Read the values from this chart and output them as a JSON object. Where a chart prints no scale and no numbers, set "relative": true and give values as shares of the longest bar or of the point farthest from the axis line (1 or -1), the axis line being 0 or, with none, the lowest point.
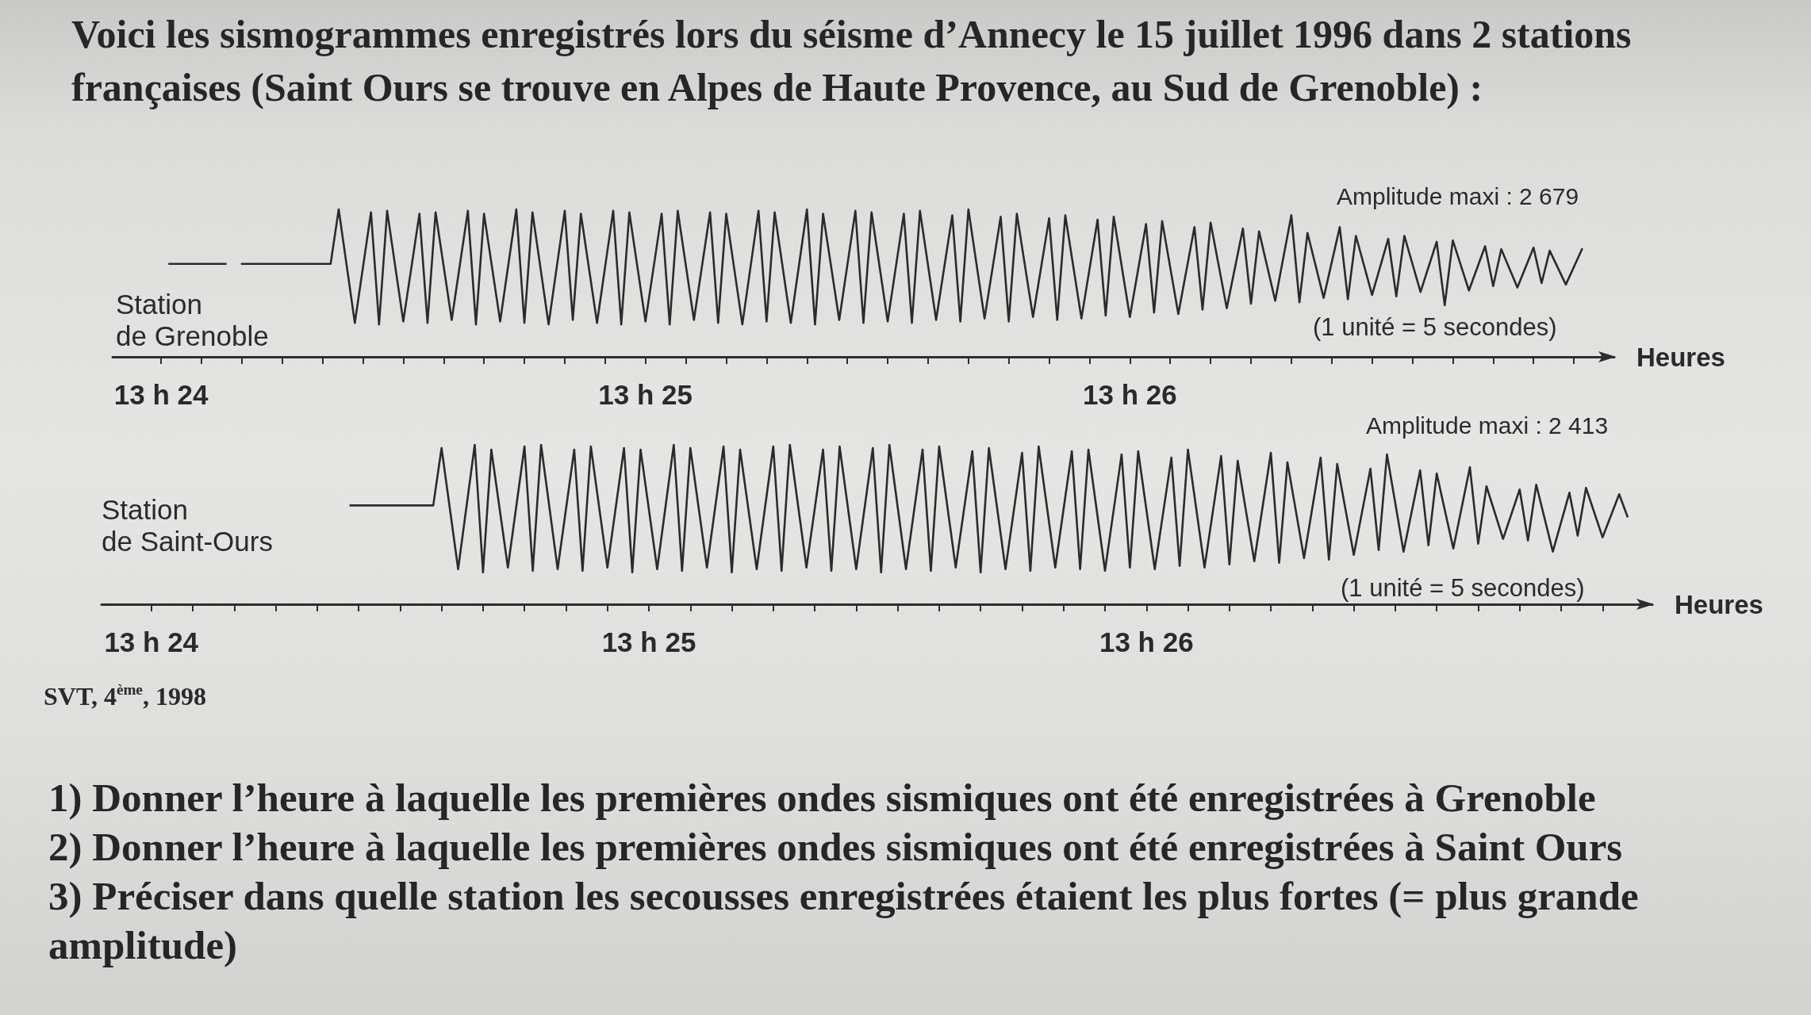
{
  "chart_data": [
    {
      "type": "line",
      "relative": true,
      "title": "Voici les sismogrammes enregistrés lors du séisme d’Annecy le 15 juillet 1996 dans 2 stations françaises (Saint Ours se trouve en Alpes de Haute Provence, au Sud de Grenoble) :",
      "xlabel": "Heures",
      "annotations": [
        "Amplitude maxi : 2 679",
        "(1 unité = 5 secondes)"
      ],
      "xlim": [
        "1996-07-15T13:23:54",
        "1996-07-15T13:27:00"
      ],
      "xticks": [
        {
          "value": "1996-07-15T13:24:00",
          "label": "13 h 24"
        },
        {
          "value": "1996-07-15T13:24:05",
          "label": null
        },
        {
          "value": "1996-07-15T13:24:10",
          "label": null
        },
        {
          "value": "1996-07-15T13:24:15",
          "label": null
        },
        {
          "value": "1996-07-15T13:24:20",
          "label": null
        },
        {
          "value": "1996-07-15T13:24:25",
          "label": null
        },
        {
          "value": "1996-07-15T13:24:30",
          "label": null
        },
        {
          "value": "1996-07-15T13:24:35",
          "label": null
        },
        {
          "value": "1996-07-15T13:24:40",
          "label": null
        },
        {
          "value": "1996-07-15T13:24:45",
          "label": null
        },
        {
          "value": "1996-07-15T13:24:50",
          "label": null
        },
        {
          "value": "1996-07-15T13:24:55",
          "label": null
        },
        {
          "value": "1996-07-15T13:25:00",
          "label": "13 h 25"
        },
        {
          "value": "1996-07-15T13:25:05",
          "label": null
        },
        {
          "value": "1996-07-15T13:25:10",
          "label": null
        },
        {
          "value": "1996-07-15T13:25:15",
          "label": null
        },
        {
          "value": "1996-07-15T13:25:20",
          "label": null
        },
        {
          "value": "1996-07-15T13:25:25",
          "label": null
        },
        {
          "value": "1996-07-15T13:25:30",
          "label": null
        },
        {
          "value": "1996-07-15T13:25:35",
          "label": null
        },
        {
          "value": "1996-07-15T13:25:40",
          "label": null
        },
        {
          "value": "1996-07-15T13:25:45",
          "label": null
        },
        {
          "value": "1996-07-15T13:25:50",
          "label": null
        },
        {
          "value": "1996-07-15T13:25:55",
          "label": null
        },
        {
          "value": "1996-07-15T13:26:00",
          "label": "13 h 26"
        },
        {
          "value": "1996-07-15T13:26:05",
          "label": null
        },
        {
          "value": "1996-07-15T13:26:10",
          "label": null
        },
        {
          "value": "1996-07-15T13:26:15",
          "label": null
        },
        {
          "value": "1996-07-15T13:26:20",
          "label": null
        },
        {
          "value": "1996-07-15T13:26:25",
          "label": null
        },
        {
          "value": "1996-07-15T13:26:30",
          "label": null
        },
        {
          "value": "1996-07-15T13:26:35",
          "label": null
        },
        {
          "value": "1996-07-15T13:26:40",
          "label": null
        },
        {
          "value": "1996-07-15T13:26:45",
          "label": null
        },
        {
          "value": "1996-07-15T13:26:50",
          "label": null
        },
        {
          "value": "1996-07-15T13:26:55",
          "label": null
        }
      ],
      "x": [
        "1996-07-15T13:24:01",
        "1996-07-15T13:24:08",
        "1996-07-15T13:24:09",
        "1996-07-15T13:24:10",
        "1996-07-15T13:24:21",
        "1996-07-15T13:24:22",
        "1996-07-15T13:24:24",
        "1996-07-15T13:24:26",
        "1996-07-15T13:24:27",
        "1996-07-15T13:24:28",
        "1996-07-15T13:24:30",
        "1996-07-15T13:24:32",
        "1996-07-15T13:24:33",
        "1996-07-15T13:24:34",
        "1996-07-15T13:24:36",
        "1996-07-15T13:24:38",
        "1996-07-15T13:24:39",
        "1996-07-15T13:24:40",
        "1996-07-15T13:24:42",
        "1996-07-15T13:24:44",
        "1996-07-15T13:24:45",
        "1996-07-15T13:24:46",
        "1996-07-15T13:24:48",
        "1996-07-15T13:24:50",
        "1996-07-15T13:24:51",
        "1996-07-15T13:24:52",
        "1996-07-15T13:24:54",
        "1996-07-15T13:24:56",
        "1996-07-15T13:24:57",
        "1996-07-15T13:24:58",
        "1996-07-15T13:25:00",
        "1996-07-15T13:25:02",
        "1996-07-15T13:25:03",
        "1996-07-15T13:25:04",
        "1996-07-15T13:25:06",
        "1996-07-15T13:25:08",
        "1996-07-15T13:25:09",
        "1996-07-15T13:25:10",
        "1996-07-15T13:25:12",
        "1996-07-15T13:25:14",
        "1996-07-15T13:25:15",
        "1996-07-15T13:25:16",
        "1996-07-15T13:25:18",
        "1996-07-15T13:25:20",
        "1996-07-15T13:25:21",
        "1996-07-15T13:25:22",
        "1996-07-15T13:25:24",
        "1996-07-15T13:25:26",
        "1996-07-15T13:25:27",
        "1996-07-15T13:25:28",
        "1996-07-15T13:25:30",
        "1996-07-15T13:25:32",
        "1996-07-15T13:25:33",
        "1996-07-15T13:25:34",
        "1996-07-15T13:25:36",
        "1996-07-15T13:25:38",
        "1996-07-15T13:25:39",
        "1996-07-15T13:25:40",
        "1996-07-15T13:25:42",
        "1996-07-15T13:25:44",
        "1996-07-15T13:25:45",
        "1996-07-15T13:25:46",
        "1996-07-15T13:25:48",
        "1996-07-15T13:25:50",
        "1996-07-15T13:25:51",
        "1996-07-15T13:25:52",
        "1996-07-15T13:25:54",
        "1996-07-15T13:25:56",
        "1996-07-15T13:25:57",
        "1996-07-15T13:25:58",
        "1996-07-15T13:26:00",
        "1996-07-15T13:26:02",
        "1996-07-15T13:26:03",
        "1996-07-15T13:26:04",
        "1996-07-15T13:26:06",
        "1996-07-15T13:26:08",
        "1996-07-15T13:26:09",
        "1996-07-15T13:26:10",
        "1996-07-15T13:26:12",
        "1996-07-15T13:26:14",
        "1996-07-15T13:26:15",
        "1996-07-15T13:26:16",
        "1996-07-15T13:26:18",
        "1996-07-15T13:26:20",
        "1996-07-15T13:26:21",
        "1996-07-15T13:26:22",
        "1996-07-15T13:26:24",
        "1996-07-15T13:26:26",
        "1996-07-15T13:26:27",
        "1996-07-15T13:26:28",
        "1996-07-15T13:26:30",
        "1996-07-15T13:26:32",
        "1996-07-15T13:26:33",
        "1996-07-15T13:26:34",
        "1996-07-15T13:26:36",
        "1996-07-15T13:26:38",
        "1996-07-15T13:26:39",
        "1996-07-15T13:26:40",
        "1996-07-15T13:26:42",
        "1996-07-15T13:26:44",
        "1996-07-15T13:26:45",
        "1996-07-15T13:26:46",
        "1996-07-15T13:26:48",
        "1996-07-15T13:26:50",
        "1996-07-15T13:26:51",
        "1996-07-15T13:26:52",
        "1996-07-15T13:26:54",
        "1996-07-15T13:26:56"
      ],
      "series": [
        {
          "name": "Station de Grenoble",
          "color": "#2b2b2b",
          "values": [
            0.63,
            0.63,
            null,
            0.63,
            0.63,
            1.0,
            0.23,
            0.98,
            0.22,
            0.99,
            0.24,
            0.97,
            0.23,
            0.98,
            0.25,
            0.99,
            0.22,
            0.97,
            0.24,
            1.0,
            0.23,
            0.98,
            0.22,
            0.99,
            0.25,
            0.97,
            0.23,
            0.99,
            0.22,
            0.98,
            0.24,
            0.97,
            0.22,
            0.99,
            0.25,
            0.98,
            0.23,
            0.97,
            0.22,
            0.99,
            0.24,
            0.98,
            0.23,
            1.0,
            0.22,
            0.97,
            0.25,
            0.99,
            0.23,
            0.98,
            0.24,
            0.97,
            0.23,
            0.99,
            0.25,
            0.96,
            0.24,
            1.0,
            0.26,
            0.95,
            0.24,
            0.97,
            0.27,
            0.94,
            0.25,
            0.96,
            0.26,
            0.93,
            0.28,
            0.95,
            0.27,
            0.9,
            0.3,
            0.92,
            0.29,
            0.88,
            0.32,
            0.91,
            0.33,
            0.87,
            0.36,
            0.85,
            0.38,
            0.96,
            0.37,
            0.84,
            0.4,
            0.88,
            0.39,
            0.82,
            0.42,
            0.8,
            0.41,
            0.82,
            0.44,
            0.78,
            0.35,
            0.79,
            0.45,
            0.75,
            0.48,
            0.73,
            0.47,
            0.74,
            0.5,
            0.72,
            0.49,
            0.73
          ]
        }
      ]
    },
    {
      "type": "line",
      "relative": true,
      "xlabel": "Heures",
      "annotations": [
        "Amplitude maxi : 2 413",
        "(1 unité = 5 secondes)",
        "SVT, 4$^{ème}$, 1998",
        "1) Donner l’heure à laquelle les premières ondes sismiques ont été enregistrées à Grenoble",
        "2) Donner l’heure à laquelle les premières ondes sismiques ont été enregistrées à Saint Ours",
        "3) Préciser dans quelle station les secousses enregistrées étaient les plus fortes (= plus grande amplitude)"
      ],
      "xlim": [
        "1996-07-15T13:23:54",
        "1996-07-15T13:27:01"
      ],
      "xticks": [
        {
          "value": "1996-07-15T13:24:00",
          "label": "13 h 24"
        },
        {
          "value": "1996-07-15T13:24:05",
          "label": null
        },
        {
          "value": "1996-07-15T13:24:10",
          "label": null
        },
        {
          "value": "1996-07-15T13:24:15",
          "label": null
        },
        {
          "value": "1996-07-15T13:24:20",
          "label": null
        },
        {
          "value": "1996-07-15T13:24:25",
          "label": null
        },
        {
          "value": "1996-07-15T13:24:30",
          "label": null
        },
        {
          "value": "1996-07-15T13:24:35",
          "label": null
        },
        {
          "value": "1996-07-15T13:24:40",
          "label": null
        },
        {
          "value": "1996-07-15T13:24:45",
          "label": null
        },
        {
          "value": "1996-07-15T13:24:50",
          "label": null
        },
        {
          "value": "1996-07-15T13:24:55",
          "label": null
        },
        {
          "value": "1996-07-15T13:25:00",
          "label": "13 h 25"
        },
        {
          "value": "1996-07-15T13:25:05",
          "label": null
        },
        {
          "value": "1996-07-15T13:25:10",
          "label": null
        },
        {
          "value": "1996-07-15T13:25:15",
          "label": null
        },
        {
          "value": "1996-07-15T13:25:20",
          "label": null
        },
        {
          "value": "1996-07-15T13:25:25",
          "label": null
        },
        {
          "value": "1996-07-15T13:25:30",
          "label": null
        },
        {
          "value": "1996-07-15T13:25:35",
          "label": null
        },
        {
          "value": "1996-07-15T13:25:40",
          "label": null
        },
        {
          "value": "1996-07-15T13:25:45",
          "label": null
        },
        {
          "value": "1996-07-15T13:25:50",
          "label": null
        },
        {
          "value": "1996-07-15T13:25:55",
          "label": null
        },
        {
          "value": "1996-07-15T13:26:00",
          "label": "13 h 26"
        },
        {
          "value": "1996-07-15T13:26:05",
          "label": null
        },
        {
          "value": "1996-07-15T13:26:10",
          "label": null
        },
        {
          "value": "1996-07-15T13:26:15",
          "label": null
        },
        {
          "value": "1996-07-15T13:26:20",
          "label": null
        },
        {
          "value": "1996-07-15T13:26:25",
          "label": null
        },
        {
          "value": "1996-07-15T13:26:30",
          "label": null
        },
        {
          "value": "1996-07-15T13:26:35",
          "label": null
        },
        {
          "value": "1996-07-15T13:26:40",
          "label": null
        },
        {
          "value": "1996-07-15T13:26:45",
          "label": null
        },
        {
          "value": "1996-07-15T13:26:50",
          "label": null
        },
        {
          "value": "1996-07-15T13:26:55",
          "label": null
        }
      ],
      "x": [
        "1996-07-15T13:24:24",
        "1996-07-15T13:24:34",
        "1996-07-15T13:24:35",
        "1996-07-15T13:24:37",
        "1996-07-15T13:24:39",
        "1996-07-15T13:24:40",
        "1996-07-15T13:24:41",
        "1996-07-15T13:24:43",
        "1996-07-15T13:24:45",
        "1996-07-15T13:24:46",
        "1996-07-15T13:24:47",
        "1996-07-15T13:24:49",
        "1996-07-15T13:24:51",
        "1996-07-15T13:24:52",
        "1996-07-15T13:24:53",
        "1996-07-15T13:24:55",
        "1996-07-15T13:24:57",
        "1996-07-15T13:24:58",
        "1996-07-15T13:24:59",
        "1996-07-15T13:25:01",
        "1996-07-15T13:25:03",
        "1996-07-15T13:25:04",
        "1996-07-15T13:25:05",
        "1996-07-15T13:25:07",
        "1996-07-15T13:25:09",
        "1996-07-15T13:25:10",
        "1996-07-15T13:25:11",
        "1996-07-15T13:25:13",
        "1996-07-15T13:25:15",
        "1996-07-15T13:25:16",
        "1996-07-15T13:25:17",
        "1996-07-15T13:25:19",
        "1996-07-15T13:25:21",
        "1996-07-15T13:25:22",
        "1996-07-15T13:25:23",
        "1996-07-15T13:25:25",
        "1996-07-15T13:25:27",
        "1996-07-15T13:25:28",
        "1996-07-15T13:25:29",
        "1996-07-15T13:25:31",
        "1996-07-15T13:25:33",
        "1996-07-15T13:25:34",
        "1996-07-15T13:25:35",
        "1996-07-15T13:25:37",
        "1996-07-15T13:25:39",
        "1996-07-15T13:25:40",
        "1996-07-15T13:25:41",
        "1996-07-15T13:25:43",
        "1996-07-15T13:25:45",
        "1996-07-15T13:25:46",
        "1996-07-15T13:25:47",
        "1996-07-15T13:25:49",
        "1996-07-15T13:25:51",
        "1996-07-15T13:25:52",
        "1996-07-15T13:25:53",
        "1996-07-15T13:25:55",
        "1996-07-15T13:25:57",
        "1996-07-15T13:25:58",
        "1996-07-15T13:25:59",
        "1996-07-15T13:26:01",
        "1996-07-15T13:26:03",
        "1996-07-15T13:26:04",
        "1996-07-15T13:26:05",
        "1996-07-15T13:26:07",
        "1996-07-15T13:26:09",
        "1996-07-15T13:26:10",
        "1996-07-15T13:26:11",
        "1996-07-15T13:26:13",
        "1996-07-15T13:26:15",
        "1996-07-15T13:26:16",
        "1996-07-15T13:26:17",
        "1996-07-15T13:26:19",
        "1996-07-15T13:26:21",
        "1996-07-15T13:26:22",
        "1996-07-15T13:26:23",
        "1996-07-15T13:26:25",
        "1996-07-15T13:26:27",
        "1996-07-15T13:26:28",
        "1996-07-15T13:26:29",
        "1996-07-15T13:26:31",
        "1996-07-15T13:26:33",
        "1996-07-15T13:26:34",
        "1996-07-15T13:26:35",
        "1996-07-15T13:26:37",
        "1996-07-15T13:26:39",
        "1996-07-15T13:26:40",
        "1996-07-15T13:26:41",
        "1996-07-15T13:26:43",
        "1996-07-15T13:26:45",
        "1996-07-15T13:26:46",
        "1996-07-15T13:26:47",
        "1996-07-15T13:26:49",
        "1996-07-15T13:26:51",
        "1996-07-15T13:26:52",
        "1996-07-15T13:26:53",
        "1996-07-15T13:26:55",
        "1996-07-15T13:26:57",
        "1996-07-15T13:26:58"
      ],
      "series": [
        {
          "name": "Station de Saint-Ours",
          "color": "#2b2b2b",
          "values": [
            0.62,
            0.62,
            0.98,
            0.22,
            1.0,
            0.2,
            0.97,
            0.23,
            0.99,
            0.21,
            1.0,
            0.22,
            0.97,
            0.21,
            0.99,
            0.23,
            0.98,
            0.2,
            0.97,
            0.22,
            1.0,
            0.21,
            0.98,
            0.23,
            0.99,
            0.2,
            0.97,
            0.22,
            0.99,
            0.21,
            1.0,
            0.23,
            0.97,
            0.21,
            0.99,
            0.22,
            0.98,
            0.2,
            1.0,
            0.22,
            0.97,
            0.21,
            0.99,
            0.23,
            0.96,
            0.2,
            0.98,
            0.22,
            0.95,
            0.21,
            0.99,
            0.23,
            0.96,
            0.22,
            0.97,
            0.21,
            0.94,
            0.23,
            0.96,
            0.22,
            0.92,
            0.24,
            0.97,
            0.23,
            0.93,
            0.25,
            0.9,
            0.27,
            0.95,
            0.26,
            0.89,
            0.29,
            0.92,
            0.28,
            0.88,
            0.31,
            0.85,
            0.34,
            0.94,
            0.33,
            0.84,
            0.37,
            0.82,
            0.35,
            0.86,
            0.38,
            0.74,
            0.41,
            0.72,
            0.4,
            0.75,
            0.33,
            0.7,
            0.43,
            0.73,
            0.42,
            0.69,
            0.55
          ]
        }
      ]
    }
  ]
}
